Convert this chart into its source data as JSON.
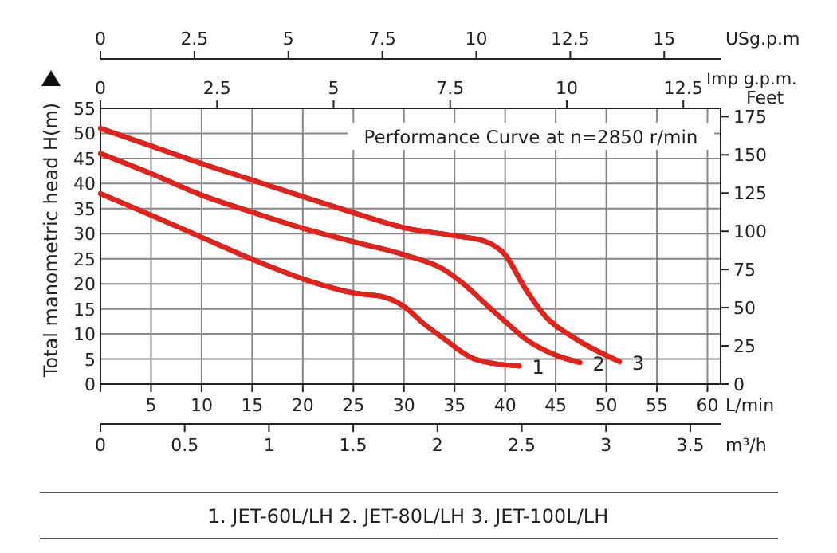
{
  "chart_data": [
    {
      "type": "line",
      "title": "Performance Curve at n=2850 r/min",
      "xlabel": "L/min",
      "ylabel": "Total manometric head H(m)",
      "y2label": "Feet",
      "x2label": "Imp g.p.m.",
      "xlim": [
        0,
        61.3
      ],
      "xticks": [
        {
          "value": 0,
          "label": null
        },
        5,
        10,
        15,
        20,
        25,
        30,
        35,
        40,
        45,
        50,
        55,
        60
      ],
      "ylim": [
        0,
        55
      ],
      "yticks": [
        0,
        5,
        10,
        15,
        20,
        25,
        30,
        35,
        40,
        45,
        50,
        55
      ],
      "y2lim": [
        0,
        180.4
      ],
      "y2ticks": [
        0,
        25,
        50,
        75,
        100,
        125,
        150,
        175
      ],
      "x2lim": [
        0,
        13.3
      ],
      "x2ticks": [
        0,
        2.5,
        5,
        7.5,
        10,
        12.5
      ],
      "grid": true,
      "series": [
        {
          "name": "1",
          "color": "#e0231c",
          "x": [
            0,
            5,
            10,
            15,
            20,
            25,
            28,
            30,
            32,
            34,
            37,
            41.4
          ],
          "values": [
            38,
            33.7,
            29.3,
            24.9,
            21,
            18.2,
            17.4,
            15.5,
            12,
            9,
            5,
            3.6
          ]
        },
        {
          "name": "2",
          "color": "#e0231c",
          "x": [
            0,
            5,
            10,
            15,
            20,
            25,
            30,
            34,
            36,
            38.5,
            40,
            42,
            44.5,
            47.4
          ],
          "values": [
            46,
            42,
            37.7,
            34.3,
            31.1,
            28.4,
            25.8,
            22.8,
            19.8,
            15.2,
            12.5,
            9,
            6.2,
            4.3
          ]
        },
        {
          "name": "3",
          "color": "#e0231c",
          "x": [
            0,
            5,
            10,
            15,
            20,
            25,
            30,
            35,
            38,
            40,
            42,
            44,
            47,
            51.3
          ],
          "values": [
            51,
            47.5,
            44,
            40.7,
            37.4,
            34.2,
            31.2,
            29.6,
            28.5,
            25.8,
            19,
            13.5,
            9,
            4.5
          ]
        }
      ],
      "annotations": [
        "1. JET-60L/LH   2. JET-80L/LH   3. JET-100L/LH"
      ]
    },
    {
      "type": "line",
      "xlabel": "USg.p.m",
      "xlim": [
        0,
        16.5
      ],
      "xticks": [
        0,
        2.5,
        5,
        7.5,
        10,
        12.5,
        15
      ],
      "ylim": [
        0,
        55
      ],
      "tick_labels": "x",
      "series": [
        {
          "color": "#e0231c",
          "x": [
            0,
            1.35,
            2.69,
            4.04,
            5.38,
            6.73,
            7.54,
            8.08,
            8.61,
            9.15,
            9.96,
            11.14
          ],
          "values": [
            38,
            33.7,
            29.3,
            24.9,
            21,
            18.2,
            17.4,
            15.5,
            12,
            9,
            5,
            3.6
          ]
        },
        {
          "color": "#e0231c",
          "x": [
            0,
            1.35,
            2.69,
            4.04,
            5.38,
            6.73,
            8.08,
            9.15,
            9.69,
            10.36,
            10.77,
            11.31,
            11.98,
            12.76
          ],
          "values": [
            46,
            42,
            37.7,
            34.3,
            31.1,
            28.4,
            25.8,
            22.8,
            19.8,
            15.2,
            12.5,
            9,
            6.2,
            4.3
          ]
        },
        {
          "color": "#e0231c",
          "x": [
            0,
            1.35,
            2.69,
            4.04,
            5.38,
            6.73,
            8.08,
            9.42,
            10.23,
            10.77,
            11.31,
            11.84,
            12.65,
            13.81
          ],
          "values": [
            51,
            47.5,
            44,
            40.7,
            37.4,
            34.2,
            31.2,
            29.6,
            28.5,
            25.8,
            19,
            13.5,
            9,
            4.5
          ]
        }
      ]
    },
    {
      "type": "line",
      "xlabel": "m³/h",
      "xlim": [
        0,
        3.68
      ],
      "xticks": [
        0,
        0.5,
        1,
        1.5,
        2,
        2.5,
        3,
        3.5
      ],
      "ylim": [
        0,
        55
      ],
      "tick_labels": "x",
      "series": [
        {
          "color": "#e0231c",
          "x": [
            0,
            0.3,
            0.6,
            0.9,
            1.2,
            1.5,
            1.68,
            1.8,
            1.92,
            2.04,
            2.22,
            2.48
          ],
          "values": [
            38,
            33.7,
            29.3,
            24.9,
            21,
            18.2,
            17.4,
            15.5,
            12,
            9,
            5,
            3.6
          ]
        },
        {
          "color": "#e0231c",
          "x": [
            0,
            0.3,
            0.6,
            0.9,
            1.2,
            1.5,
            1.8,
            2.04,
            2.16,
            2.31,
            2.4,
            2.52,
            2.67,
            2.84
          ],
          "values": [
            46,
            42,
            37.7,
            34.3,
            31.1,
            28.4,
            25.8,
            22.8,
            19.8,
            15.2,
            12.5,
            9,
            6.2,
            4.3
          ]
        },
        {
          "color": "#e0231c",
          "x": [
            0,
            0.3,
            0.6,
            0.9,
            1.2,
            1.5,
            1.8,
            2.1,
            2.28,
            2.4,
            2.52,
            2.64,
            2.82,
            3.08
          ],
          "values": [
            51,
            47.5,
            44,
            40.7,
            37.4,
            34.2,
            31.2,
            29.6,
            28.5,
            25.8,
            19,
            13.5,
            9,
            4.5
          ]
        }
      ]
    }
  ]
}
